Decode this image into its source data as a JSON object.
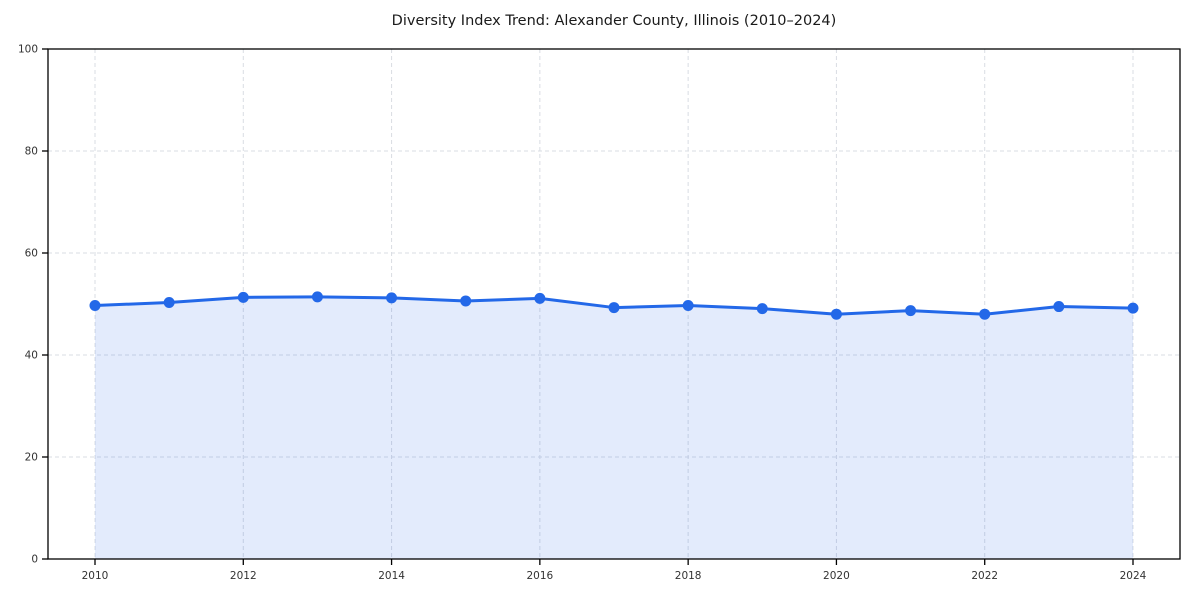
{
  "chart_data": {
    "type": "line",
    "title": "Diversity Index Trend: Alexander County, Illinois (2010–2024)",
    "xlabel": "",
    "ylabel": "",
    "x": [
      2010,
      2011,
      2012,
      2013,
      2014,
      2015,
      2016,
      2017,
      2018,
      2019,
      2020,
      2021,
      2022,
      2023,
      2024
    ],
    "series": [
      {
        "name": "Diversity Index",
        "values": [
          49.7,
          50.3,
          51.3,
          51.4,
          51.2,
          50.6,
          51.1,
          49.3,
          49.7,
          49.1,
          48.0,
          48.7,
          48.0,
          49.5,
          49.2
        ]
      }
    ],
    "xticks": [
      2010,
      2012,
      2014,
      2016,
      2018,
      2020,
      2022,
      2024
    ],
    "yticks": [
      0,
      20,
      40,
      60,
      80,
      100
    ],
    "ylim": [
      0,
      100
    ],
    "grid": true,
    "legend": false,
    "marker": "circle",
    "colors": {
      "line": "#2368e8",
      "marker": "#2368e8",
      "area_fill": "rgba(35,104,232,0.13)",
      "gridline": "#d9dde3",
      "spine": "#000000",
      "tick_label": "#333333",
      "title_text": "#1a1a1a",
      "background": "#ffffff"
    }
  }
}
